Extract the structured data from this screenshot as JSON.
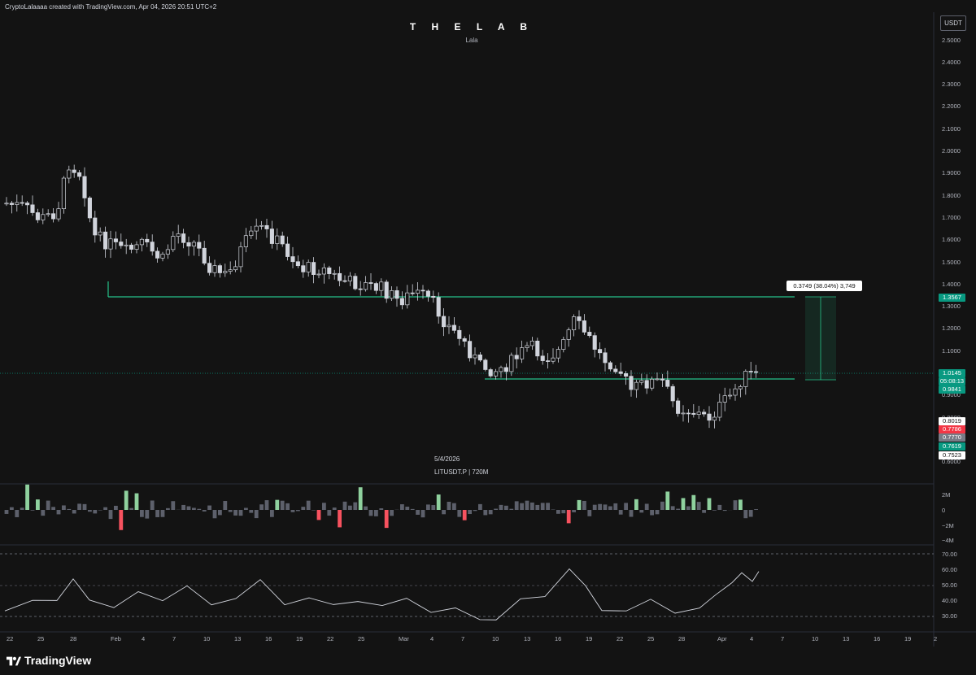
{
  "header": {
    "watermark": "CryptoLalaaaa created with TradingView.com, Apr 04, 2026 20:51 UTC+2"
  },
  "chart_title": "T H E  L A B",
  "chart_subtitle": "Lala",
  "currency_button": "USDT",
  "price_axis": [
    "2.5000",
    "2.4000",
    "2.3000",
    "2.2000",
    "2.1000",
    "2.0000",
    "1.9000",
    "1.8000",
    "1.7000",
    "1.6000",
    "1.5000",
    "1.4000",
    "1.3000",
    "1.2000",
    "1.1000",
    "1.0000",
    "0.9000",
    "0.8000",
    "0.7000",
    "0.6000"
  ],
  "price_tags": {
    "resistance": "1.3567",
    "last_price": "1.0145",
    "countdown": "05:08:13",
    "support": "0.9841",
    "tag_a": "0.8019",
    "tag_b": "0.7786",
    "tag_c": "0.7770",
    "tag_d": "0.7619",
    "tag_e": "0.7523"
  },
  "colors": {
    "up": "#d1d4dc",
    "down": "#d1d4dc",
    "line": "#26c28a",
    "last": "#089981",
    "vol_up": "#8fd19e",
    "vol_down": "#f7525f",
    "tag_red": "#f23645",
    "tag_gray": "#787b86"
  },
  "measure_label": "0.3749 (38.04%) 3,749",
  "annotation": {
    "date": "5/4/2026",
    "symbol": "LITUSDT.P | 720M"
  },
  "volume_axis": [
    "2M",
    "0",
    "−2M",
    "−4M"
  ],
  "rsi_axis": [
    "70.00",
    "60.00",
    "50.00",
    "40.00",
    "30.00"
  ],
  "time_axis": [
    "22",
    "25",
    "28",
    "Feb",
    "4",
    "7",
    "10",
    "13",
    "16",
    "19",
    "22",
    "25",
    "Mar",
    "4",
    "7",
    "10",
    "13",
    "16",
    "19",
    "22",
    "25",
    "28",
    "Apr",
    "4",
    "7",
    "10",
    "13",
    "16",
    "19",
    "2"
  ],
  "brand": "TradingView"
}
